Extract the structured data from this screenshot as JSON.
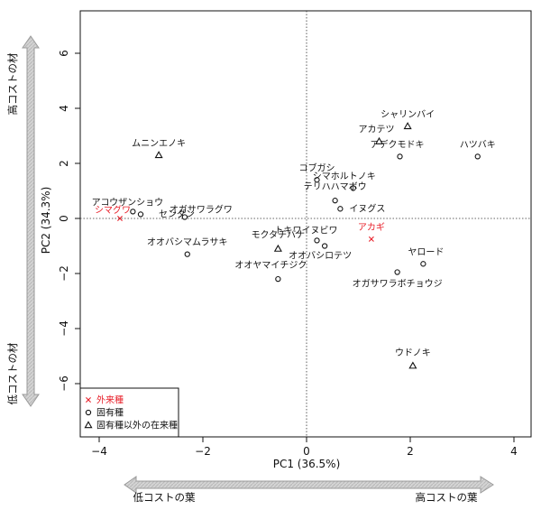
{
  "chart_data": {
    "type": "scatter",
    "title": "",
    "xlabel": "PC1 (36.5%)",
    "ylabel": "PC2 (34.3%)",
    "xlim": [
      -4.3,
      4.7
    ],
    "ylim": [
      -6.8,
      7.7
    ],
    "xticks": [
      "−4",
      "−2",
      "0",
      "2",
      "4"
    ],
    "yticks": [
      "−6",
      "−4",
      "−2",
      "0",
      "2",
      "4",
      "6"
    ],
    "reference_lines": "dotted lines at x = 0 and y = 0",
    "grid": false,
    "legend_position": "bottom-left",
    "series": [
      {
        "name": "外来種",
        "marker": "cross",
        "color": "#e8202a",
        "points": [
          {
            "label": "シマグワ",
            "x": -3.6,
            "y": 0.0
          },
          {
            "label": "アカギ",
            "x": 1.25,
            "y": -0.75
          }
        ]
      },
      {
        "name": "固有種",
        "marker": "circle",
        "color": "#111111",
        "points": [
          {
            "label": "アコウザンショウ",
            "x": -3.35,
            "y": 0.25
          },
          {
            "label": "センダン",
            "x": -3.2,
            "y": 0.15
          },
          {
            "label": "オガサワラグワ",
            "x": -2.35,
            "y": 0.05
          },
          {
            "label": "オオバシマムラサキ",
            "x": -2.3,
            "y": -1.3
          },
          {
            "label": "オオヤマイチジク",
            "x": -0.55,
            "y": -2.2
          },
          {
            "label": "トキワイヌビワ",
            "x": 0.2,
            "y": -0.8
          },
          {
            "label": "オオバシロテツ",
            "x": 0.35,
            "y": -1.0
          },
          {
            "label": "コブガシ",
            "x": 0.2,
            "y": 1.4
          },
          {
            "label": "シマホルトノキ",
            "x": 0.9,
            "y": 1.1
          },
          {
            "label": "テリハハマボウ",
            "x": 0.55,
            "y": 0.65
          },
          {
            "label": "イヌグス",
            "x": 0.65,
            "y": 0.35
          },
          {
            "label": "アデクモドキ",
            "x": 1.8,
            "y": 2.25
          },
          {
            "label": "ハツバキ",
            "x": 3.3,
            "y": 2.25
          },
          {
            "label": "ヤロード",
            "x": 2.25,
            "y": -1.65
          },
          {
            "label": "オガサワラボチョウジ",
            "x": 1.75,
            "y": -1.95
          }
        ]
      },
      {
        "name": "固有種以外の在来種",
        "marker": "triangle",
        "color": "#111111",
        "points": [
          {
            "label": "ムニンエノキ",
            "x": -2.85,
            "y": 2.3
          },
          {
            "label": "モクタチバナ",
            "x": -0.55,
            "y": -1.1
          },
          {
            "label": "シャリンバイ",
            "x": 1.95,
            "y": 3.35
          },
          {
            "label": "アカテツ",
            "x": 1.4,
            "y": 2.8
          },
          {
            "label": "ウドノキ",
            "x": 2.05,
            "y": -5.35
          }
        ]
      }
    ]
  },
  "arrows": {
    "vertical_top_label": "高コストの材",
    "vertical_bottom_label": "低コストの材",
    "horizontal_left_label": "低コストの葉",
    "horizontal_right_label": "高コストの葉"
  },
  "colors": {
    "introduced": "#e8202a",
    "ink": "#111111",
    "arrow_fill": "#cfcfcf",
    "arrow_stroke": "#9a9a9a"
  }
}
